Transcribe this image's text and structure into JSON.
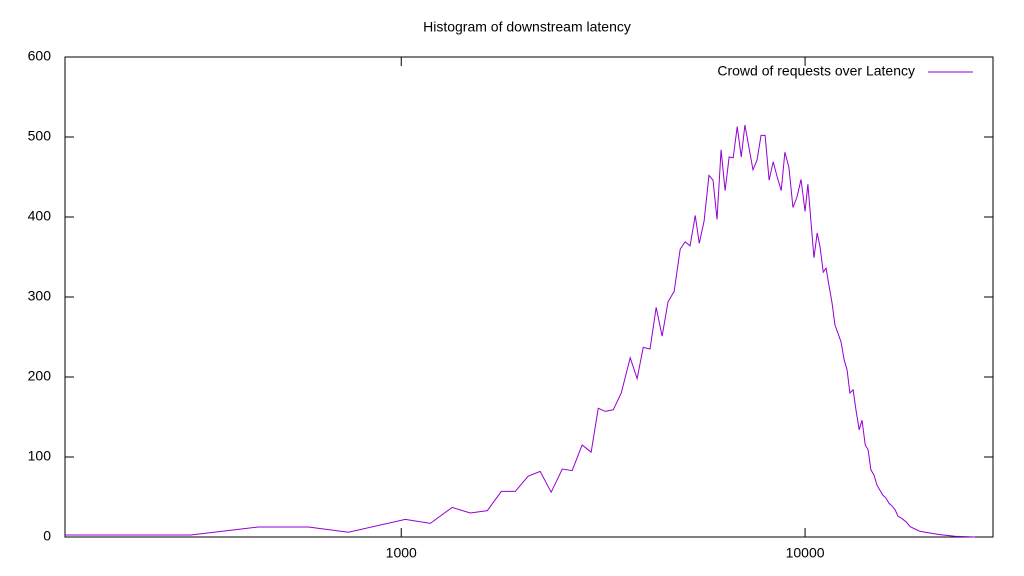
{
  "chart_data": {
    "type": "line",
    "title": "Histogram of downstream latency",
    "x": [
      147,
      301,
      443,
      589,
      740,
      1023,
      1180,
      1337,
      1482,
      1634,
      1769,
      1916,
      2062,
      2208,
      2351,
      2505,
      2650,
      2805,
      2953,
      3075,
      3199,
      3350,
      3506,
      3690,
      3838,
      3974,
      4131,
      4278,
      4426,
      4578,
      4740,
      4907,
      5047,
      5191,
      5346,
      5470,
      5623,
      5781,
      5916,
      6053,
      6194,
      6339,
      6486,
      6637,
      6792,
      6950,
      7096,
      7261,
      7430,
      7603,
      7780,
      7962,
      8147,
      8337,
      8531,
      8730,
      8913,
      9120,
      9333,
      9550,
      9772,
      10000,
      10162,
      10351,
      10520,
      10715,
      10889,
      11092,
      11272,
      11455,
      11668,
      11858,
      12078,
      12274,
      12503,
      12706,
      12912,
      13152,
      13366,
      13614,
      13836,
      14093,
      14322,
      14555,
      14825,
      15066,
      15346,
      15596,
      15849,
      16144,
      16406,
      16711,
      16982,
      17378,
      17783,
      18197,
      18707,
      19275,
      20370,
      21577,
      23496,
      26363
    ],
    "series": [
      {
        "name": "Crowd of requests over Latency",
        "color": "#9400d3",
        "values": [
          2.5,
          2.5,
          12.5,
          12.5,
          6,
          22,
          17,
          37,
          30,
          33,
          57,
          57,
          76,
          82,
          56,
          85,
          83,
          115,
          106,
          161,
          157,
          159,
          180,
          224,
          198,
          237,
          235,
          287,
          251,
          294,
          307,
          360,
          369,
          364,
          402,
          367,
          395,
          452,
          446,
          397,
          484,
          433,
          475,
          474,
          513,
          475,
          515,
          487,
          459,
          471,
          502,
          502,
          446,
          469,
          450,
          433,
          481,
          462,
          412,
          425,
          447,
          407,
          441,
          392,
          349,
          380,
          363,
          331,
          336,
          315,
          292,
          265,
          254,
          244,
          221,
          209,
          180,
          184,
          159,
          134,
          146,
          115,
          109,
          84,
          77,
          65,
          58,
          52,
          49,
          42,
          39,
          34,
          26,
          23,
          19,
          13,
          10,
          7,
          5,
          3,
          1,
          0
        ]
      }
    ],
    "xscale": "log",
    "xlim": [
      147,
      29200
    ],
    "xticks": [
      1000,
      10000
    ],
    "ylim": [
      0,
      600
    ],
    "yticks": [
      0,
      100,
      200,
      300,
      400,
      500,
      600
    ],
    "legend": "top-right"
  }
}
